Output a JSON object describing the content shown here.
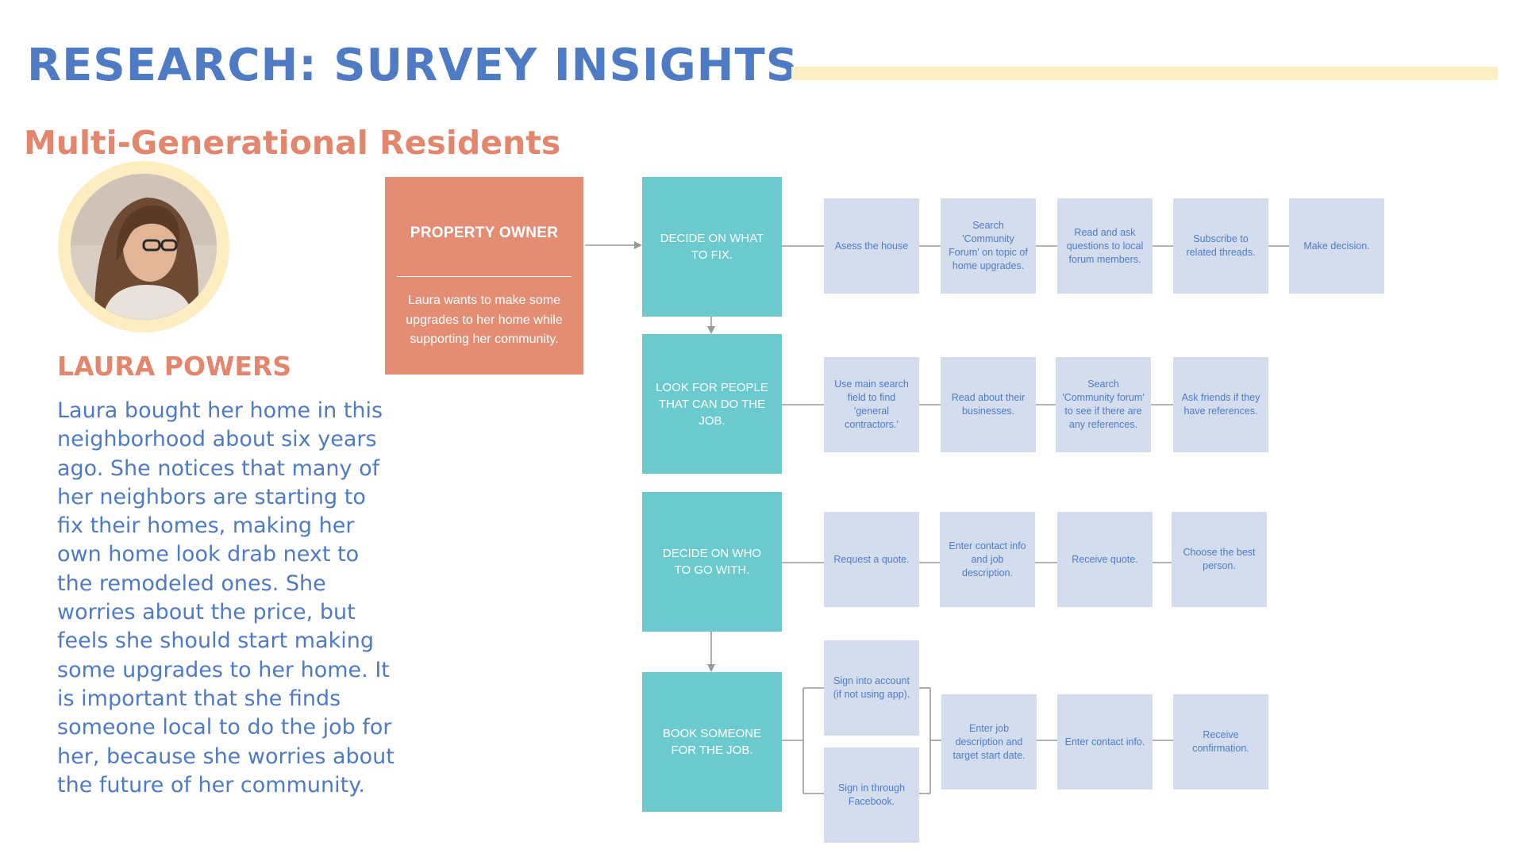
{
  "header": {
    "title": "RESEARCH: SURVEY INSIGHTS",
    "subtitle": "Multi-Generational Residents"
  },
  "persona": {
    "name": "LAURA POWERS",
    "bio": "Laura bought her home in this neighborhood about six years ago. She notices that many of her neighbors are starting to fix their homes, making her own home look drab next to the remodeled ones. She worries about the price, but feels she should start making some upgrades to her home. It is important that she finds someone local to do the job for her, because she worries about the future of her community.",
    "role": {
      "title": "PROPERTY OWNER",
      "description": "Laura wants to make some upgrades to her home while supporting her community."
    }
  },
  "journey": {
    "stages": [
      {
        "label": "DECIDE ON WHAT TO FIX.",
        "steps": [
          "Asess the house",
          "Search 'Community Forum' on topic of home upgrades.",
          "Read and ask questions to local forum members.",
          "Subscribe to related threads.",
          "Make decision."
        ]
      },
      {
        "label": "LOOK FOR PEOPLE THAT CAN DO THE JOB.",
        "steps": [
          "Use main search field to find 'general contractors.'",
          "Read about their businesses.",
          "Search 'Community forum' to see if there are any references.",
          "Ask friends if they have references."
        ]
      },
      {
        "label": "DECIDE ON WHO TO GO WITH.",
        "steps": [
          "Request a quote.",
          "Enter contact info and job description.",
          "Receive quote.",
          "Choose the best person."
        ]
      },
      {
        "label": "BOOK SOMEONE FOR THE JOB.",
        "options": [
          "Sign into account (if not using app).",
          "Sign in through Facebook."
        ],
        "steps": [
          "Enter job description and target start date.",
          "Enter contact info.",
          "Receive confirmation."
        ]
      }
    ]
  },
  "colors": {
    "title": "#4F7BC4",
    "accent": "#E2866E",
    "stage": "#6BCACE",
    "step": "#D3DDEE",
    "highlight": "#FCEFC4"
  }
}
